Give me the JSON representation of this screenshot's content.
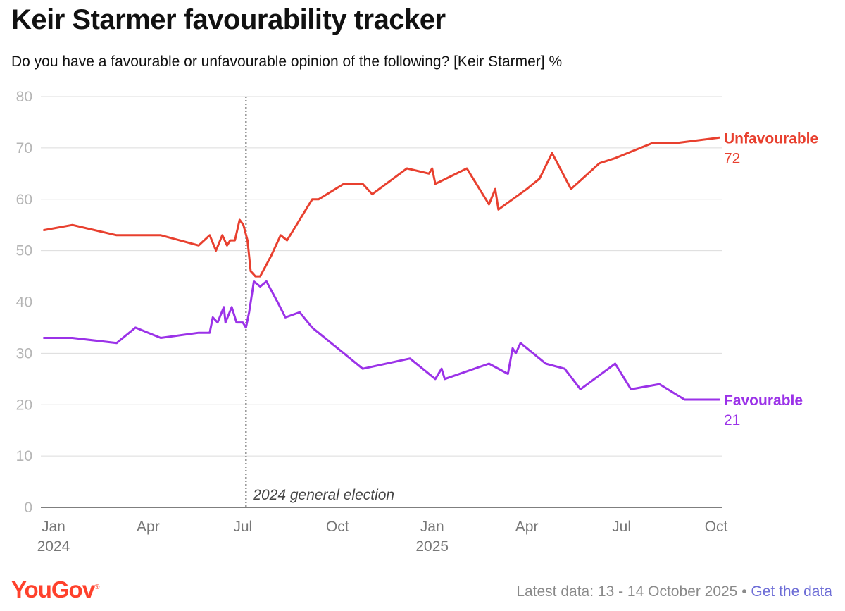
{
  "title": "Keir Starmer favourability tracker",
  "subtitle": "Do you have a favourable or unfavourable opinion of the following? [Keir Starmer] %",
  "logo": {
    "text": "YouGov",
    "mark": "®"
  },
  "footer": {
    "latest": "Latest data: 13 - 14 October 2025",
    "separator": "•",
    "link": "Get the data"
  },
  "colors": {
    "unfavourable": "#e8402f",
    "favourable": "#9b32e8",
    "grid": "#dcdcdc",
    "election": "#999999"
  },
  "chart_data": {
    "type": "line",
    "title": "Keir Starmer favourability tracker",
    "ylabel": "%",
    "ylim": [
      0,
      80
    ],
    "yticks": [
      0,
      10,
      20,
      30,
      40,
      50,
      60,
      70,
      80
    ],
    "xlim": [
      0,
      21.6
    ],
    "x_unit": "months since 1 Jan 2024",
    "xticks": [
      {
        "x": 0.4,
        "label": "Jan",
        "year": "2024"
      },
      {
        "x": 3.4,
        "label": "Apr",
        "year": ""
      },
      {
        "x": 6.4,
        "label": "Jul",
        "year": ""
      },
      {
        "x": 9.4,
        "label": "Oct",
        "year": ""
      },
      {
        "x": 12.4,
        "label": "Jan",
        "year": "2025"
      },
      {
        "x": 15.4,
        "label": "Apr",
        "year": ""
      },
      {
        "x": 18.4,
        "label": "Jul",
        "year": ""
      },
      {
        "x": 21.4,
        "label": "Oct",
        "year": ""
      }
    ],
    "annotation": {
      "label": "2024 general election",
      "x": 6.5
    },
    "series": [
      {
        "name": "Unfavourable",
        "latest": "72",
        "color": "#e8402f",
        "x": [
          0.1,
          1.0,
          2.4,
          3.8,
          5.0,
          5.35,
          5.55,
          5.75,
          5.9,
          6.0,
          6.15,
          6.3,
          6.42,
          6.55,
          6.65,
          6.8,
          6.95,
          7.3,
          7.6,
          7.8,
          8.3,
          8.6,
          8.8,
          9.6,
          10.2,
          10.5,
          11.6,
          12.3,
          12.4,
          12.5,
          13.5,
          14.2,
          14.4,
          14.5,
          15.4,
          15.8,
          16.2,
          16.8,
          17.7,
          18.2,
          19.4,
          20.2,
          21.5
        ],
        "values": [
          54,
          55,
          53,
          53,
          51,
          53,
          50,
          53,
          51,
          52,
          52,
          56,
          55,
          52,
          46,
          45,
          45,
          49,
          53,
          52,
          57,
          60,
          60,
          63,
          63,
          61,
          66,
          65,
          66,
          63,
          66,
          59,
          62,
          58,
          62,
          64,
          69,
          62,
          67,
          68,
          71,
          71,
          72
        ]
      },
      {
        "name": "Favourable",
        "latest": "21",
        "color": "#9b32e8",
        "x": [
          0.1,
          1.0,
          2.4,
          3.0,
          3.8,
          5.0,
          5.35,
          5.45,
          5.6,
          5.8,
          5.85,
          6.05,
          6.2,
          6.4,
          6.5,
          6.6,
          6.75,
          6.95,
          7.15,
          7.5,
          7.75,
          8.2,
          8.6,
          9.4,
          10.2,
          11.7,
          12.5,
          12.7,
          12.8,
          14.2,
          14.8,
          14.95,
          15.05,
          15.2,
          16.0,
          16.6,
          17.1,
          18.2,
          18.7,
          19.6,
          20.4,
          21.5
        ],
        "values": [
          33,
          33,
          32,
          35,
          33,
          34,
          34,
          37,
          36,
          39,
          36,
          39,
          36,
          36,
          35,
          38,
          44,
          43,
          44,
          40,
          37,
          38,
          35,
          31,
          27,
          29,
          25,
          27,
          25,
          28,
          26,
          31,
          30,
          32,
          28,
          27,
          23,
          28,
          23,
          24,
          21,
          21
        ]
      }
    ]
  }
}
